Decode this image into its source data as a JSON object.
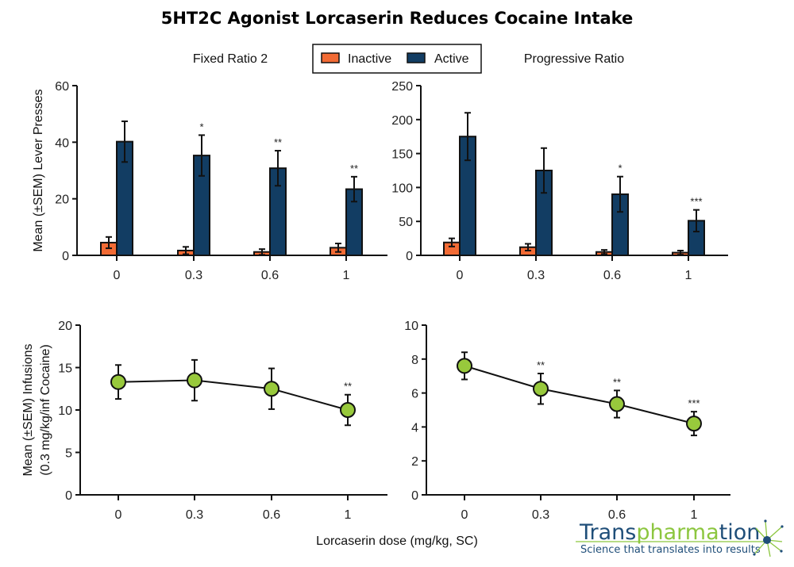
{
  "title": "5HT2C Agonist Lorcaserin Reduces Cocaine Intake",
  "legend": {
    "placement": "top-center",
    "items": [
      {
        "label": "Inactive",
        "color": "#f26b35"
      },
      {
        "label": "Active",
        "color": "#123d63"
      }
    ]
  },
  "xlabel": "Lorcaserin dose (mg/kg, SC)",
  "logo": {
    "name_part1": "Trans",
    "name_part2": "pharma",
    "name_part3": "tion",
    "tagline": "Science that translates into results",
    "colors": {
      "dark": "#1f4e79",
      "green": "#8cc63f"
    }
  },
  "chart_data": [
    {
      "type": "bar",
      "title": "Fixed Ratio 2",
      "ylabel": "Mean  (±SEM) Lever Presses",
      "categories": [
        "0",
        "0.3",
        "0.6",
        "1"
      ],
      "ylim": [
        0,
        60
      ],
      "yticks": [
        0,
        20,
        40,
        60
      ],
      "series": [
        {
          "name": "Inactive",
          "color": "#f26b35",
          "values": [
            4.5,
            1.7,
            1.2,
            2.7
          ],
          "sem": [
            2.0,
            1.3,
            1.0,
            1.5
          ]
        },
        {
          "name": "Active",
          "color": "#123d63",
          "values": [
            40.2,
            35.3,
            30.8,
            23.4
          ],
          "sem": [
            7.2,
            7.2,
            6.2,
            4.4
          ]
        }
      ],
      "annotations": [
        "",
        "*",
        "**",
        "**"
      ]
    },
    {
      "type": "bar",
      "title": "Progressive  Ratio",
      "ylabel": "",
      "categories": [
        "0",
        "0.3",
        "0.6",
        "1"
      ],
      "ylim": [
        0,
        250
      ],
      "yticks": [
        0,
        50,
        100,
        150,
        200,
        250
      ],
      "series": [
        {
          "name": "Inactive",
          "color": "#f26b35",
          "values": [
            19,
            12,
            5,
            4
          ],
          "sem": [
            6,
            5,
            3,
            3
          ]
        },
        {
          "name": "Active",
          "color": "#123d63",
          "values": [
            175,
            125,
            90,
            51
          ],
          "sem": [
            35,
            33,
            26,
            16
          ]
        }
      ],
      "annotations": [
        "",
        "",
        "*",
        "***"
      ]
    },
    {
      "type": "line",
      "title": "",
      "ylabel": [
        "Mean (±SEM) Infusions",
        "(0.3 mg/kg/inf Cocaine)"
      ],
      "categories": [
        "0",
        "0.3",
        "0.6",
        "1"
      ],
      "ylim": [
        0,
        20
      ],
      "yticks": [
        0,
        5,
        10,
        15,
        20
      ],
      "series": [
        {
          "color": "#98c93c",
          "values": [
            13.3,
            13.5,
            12.5,
            10.0
          ],
          "sem": [
            2.0,
            2.4,
            2.4,
            1.8
          ]
        }
      ],
      "annotations": [
        "",
        "",
        "",
        "**"
      ]
    },
    {
      "type": "line",
      "title": "",
      "ylabel": "",
      "categories": [
        "0",
        "0.3",
        "0.6",
        "1"
      ],
      "ylim": [
        0,
        10
      ],
      "yticks": [
        0,
        2,
        4,
        6,
        8,
        10
      ],
      "series": [
        {
          "color": "#98c93c",
          "values": [
            7.6,
            6.25,
            5.35,
            4.2
          ],
          "sem": [
            0.8,
            0.9,
            0.8,
            0.7
          ]
        }
      ],
      "annotations": [
        "",
        "**",
        "**",
        "***"
      ]
    }
  ]
}
